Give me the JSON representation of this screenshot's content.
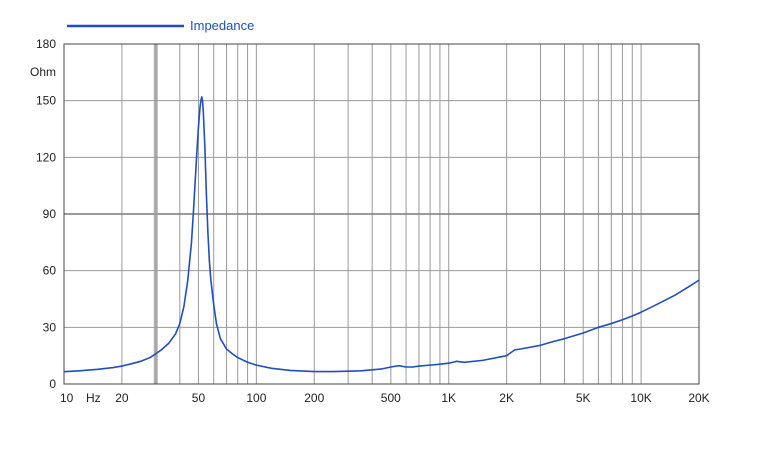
{
  "chart_data": {
    "type": "line",
    "title": "",
    "xlabel": "Hz",
    "ylabel": "Ohm",
    "x_scale": "log",
    "xlim": [
      10,
      20000
    ],
    "ylim": [
      0,
      180
    ],
    "grid": true,
    "legend_placement": "top-left",
    "colors": {
      "series": "#1f4fc1",
      "grid": "#9a9a9a",
      "grid_major": "#7a7a7a",
      "axis": "#444444",
      "text": "#222222"
    },
    "x_ticks": [
      {
        "value": 10,
        "label": "10"
      },
      {
        "value": 20,
        "label": "20"
      },
      {
        "value": 50,
        "label": "50"
      },
      {
        "value": 100,
        "label": "100"
      },
      {
        "value": 200,
        "label": "200"
      },
      {
        "value": 500,
        "label": "500"
      },
      {
        "value": 1000,
        "label": "1K"
      },
      {
        "value": 2000,
        "label": "2K"
      },
      {
        "value": 5000,
        "label": "5K"
      },
      {
        "value": 10000,
        "label": "10K"
      },
      {
        "value": 20000,
        "label": "20K"
      }
    ],
    "y_ticks": [
      {
        "value": 0,
        "label": "0"
      },
      {
        "value": 30,
        "label": "30"
      },
      {
        "value": 60,
        "label": "60"
      },
      {
        "value": 90,
        "label": "90"
      },
      {
        "value": 120,
        "label": "120"
      },
      {
        "value": 150,
        "label": "150"
      },
      {
        "value": 180,
        "label": "180"
      }
    ],
    "x_gridlines": [
      20,
      30,
      40,
      50,
      60,
      70,
      80,
      90,
      100,
      200,
      300,
      400,
      500,
      600,
      700,
      800,
      900,
      1000,
      2000,
      3000,
      4000,
      5000,
      6000,
      7000,
      8000,
      9000,
      10000,
      20000
    ],
    "y_gridlines": [
      30,
      60,
      90,
      120,
      150
    ],
    "series": [
      {
        "name": "Impedance",
        "x": [
          10,
          12,
          15,
          18,
          20,
          22,
          25,
          28,
          30,
          32,
          35,
          38,
          40,
          42,
          44,
          46,
          47,
          48,
          49,
          50,
          51,
          51.5,
          52,
          52.5,
          53,
          54,
          55,
          56,
          57,
          58,
          60,
          62,
          65,
          70,
          75,
          80,
          90,
          100,
          120,
          150,
          200,
          250,
          300,
          350,
          400,
          450,
          500,
          550,
          600,
          650,
          700,
          800,
          900,
          1000,
          1100,
          1200,
          1500,
          2000,
          2200,
          2500,
          3000,
          3500,
          4000,
          5000,
          6000,
          7000,
          8000,
          9000,
          10000,
          12000,
          15000,
          18000,
          20000
        ],
        "y": [
          6.5,
          7,
          7.8,
          8.7,
          9.5,
          10.5,
          12,
          14,
          16,
          18,
          21.5,
          26.5,
          32,
          41,
          55,
          75,
          90,
          106,
          122,
          136,
          147,
          150,
          152,
          150,
          144,
          125,
          100,
          80,
          65,
          55,
          42,
          32,
          24,
          18.5,
          16,
          14,
          11.5,
          10,
          8.3,
          7.2,
          6.6,
          6.6,
          6.8,
          7,
          7.5,
          8,
          9,
          9.7,
          9,
          9,
          9.5,
          10,
          10.5,
          11,
          12,
          11.5,
          12.5,
          15,
          18,
          19,
          20.5,
          22.5,
          24,
          27,
          30,
          32,
          34,
          36,
          38,
          42,
          47,
          52,
          55
        ]
      }
    ]
  }
}
